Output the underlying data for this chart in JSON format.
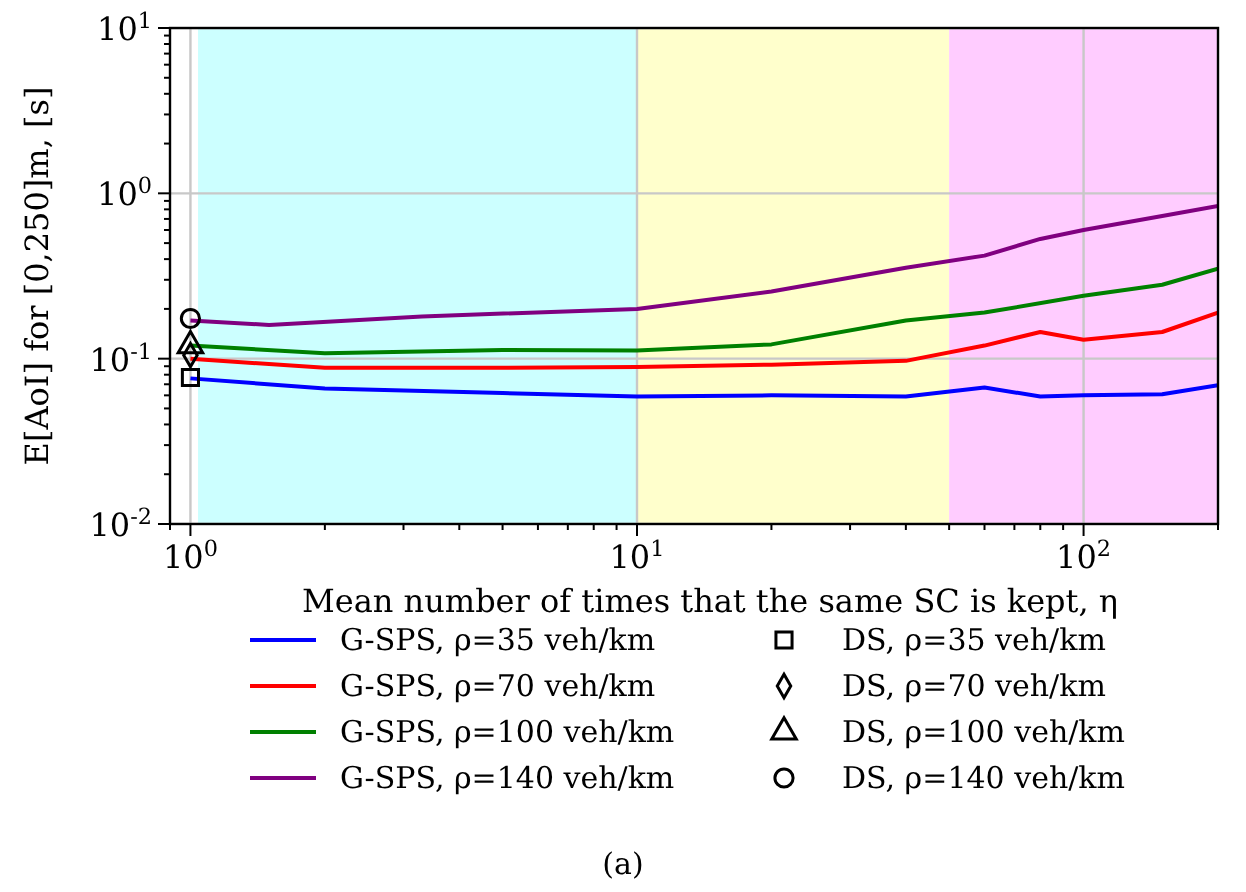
{
  "chart_data": {
    "type": "line",
    "xlabel": "Mean number of times that the same SC is kept, η",
    "ylabel": "E[AoI] for [0,250]m, [s]",
    "log": "xy",
    "grid": true,
    "legend": "bottom",
    "xlim": [
      0.9,
      200
    ],
    "ylim": [
      0.01,
      10
    ],
    "xticks": [
      {
        "value": 1,
        "label": "10$^{0}$"
      },
      {
        "value": 10,
        "label": "10$^{1}$"
      },
      {
        "value": 100,
        "label": "10$^{2}$"
      }
    ],
    "yticks": [
      {
        "value": 0.01,
        "label": "10$^{-2}$"
      },
      {
        "value": 0.1,
        "label": "10$^{-1}$"
      },
      {
        "value": 1,
        "label": "10$^{0}$"
      },
      {
        "value": 10,
        "label": "10$^{1}$"
      }
    ],
    "bands": [
      {
        "axis": "x",
        "from": 1.04,
        "to": 10,
        "color": "#ccffff"
      },
      {
        "axis": "x",
        "from": 10,
        "to": 50,
        "color": "#ffffcc"
      },
      {
        "axis": "x",
        "from": 50,
        "to": 200,
        "color": "#ffccff"
      }
    ],
    "series": [
      {
        "name": "G-SPS, ρ=35 veh/km",
        "color": "#0000ff",
        "x": [
          1,
          2,
          5,
          10,
          20,
          40,
          60,
          80,
          100,
          150,
          200
        ],
        "values": [
          0.076,
          0.066,
          0.062,
          0.059,
          0.06,
          0.059,
          0.067,
          0.059,
          0.06,
          0.061,
          0.069
        ]
      },
      {
        "name": "G-SPS, ρ=70 veh/km",
        "color": "#ff0000",
        "x": [
          1,
          2,
          5,
          10,
          20,
          40,
          60,
          80,
          100,
          150,
          200
        ],
        "values": [
          0.1,
          0.088,
          0.088,
          0.089,
          0.092,
          0.097,
          0.12,
          0.145,
          0.13,
          0.145,
          0.19
        ]
      },
      {
        "name": "G-SPS, ρ=100 veh/km",
        "color": "#008000",
        "x": [
          1,
          2,
          5,
          10,
          20,
          40,
          60,
          100,
          150,
          200
        ],
        "values": [
          0.12,
          0.108,
          0.113,
          0.112,
          0.122,
          0.17,
          0.19,
          0.24,
          0.28,
          0.35
        ]
      },
      {
        "name": "G-SPS, ρ=140 veh/km",
        "color": "#800080",
        "x": [
          1,
          1.5,
          3.3,
          10,
          20,
          40,
          60,
          80,
          100,
          150,
          200
        ],
        "values": [
          0.17,
          0.16,
          0.18,
          0.2,
          0.255,
          0.355,
          0.42,
          0.53,
          0.6,
          0.73,
          0.84
        ]
      },
      {
        "name": "DS, ρ=35 veh/km",
        "type": "scatter",
        "marker": "square",
        "color": "#000000",
        "x": [
          1
        ],
        "values": [
          0.077
        ]
      },
      {
        "name": "DS, ρ=70 veh/km",
        "type": "scatter",
        "marker": "diamond",
        "color": "#000000",
        "x": [
          1
        ],
        "values": [
          0.105
        ]
      },
      {
        "name": "DS, ρ=100 veh/km",
        "type": "scatter",
        "marker": "triangle",
        "color": "#000000",
        "x": [
          1
        ],
        "values": [
          0.12
        ]
      },
      {
        "name": "DS, ρ=140 veh/km",
        "type": "scatter",
        "marker": "circle",
        "color": "#000000",
        "x": [
          1
        ],
        "values": [
          0.175
        ]
      }
    ],
    "annotations": [
      "(a)"
    ]
  }
}
